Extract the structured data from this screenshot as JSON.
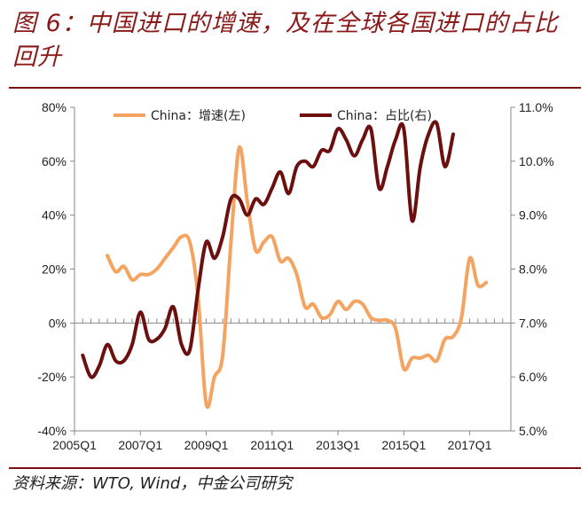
{
  "title": "图 6：中国进口的增速，及在全球各国进口的占比回升",
  "source": "资料来源：WTO, Wind，中金公司研究",
  "chart_data": {
    "type": "line",
    "x_ticks": [
      "2005Q1",
      "2007Q1",
      "2009Q1",
      "2011Q1",
      "2013Q1",
      "2015Q1",
      "2017Q1"
    ],
    "y_left": {
      "ticks": [
        "-40%",
        "-20%",
        "0%",
        "20%",
        "40%",
        "60%",
        "80%"
      ],
      "range": [
        -40,
        80
      ]
    },
    "y_right": {
      "ticks": [
        "5.0%",
        "6.0%",
        "7.0%",
        "8.0%",
        "9.0%",
        "10.0%",
        "11.0%"
      ],
      "range": [
        5.0,
        11.0
      ]
    },
    "grid": false,
    "legend_position": "top",
    "series": [
      {
        "name": "China：增速(左)",
        "axis": "left",
        "color": "#f4a460",
        "points": [
          [
            "2006Q1",
            25
          ],
          [
            "2006Q2",
            19
          ],
          [
            "2006Q3",
            21
          ],
          [
            "2006Q4",
            16
          ],
          [
            "2007Q1",
            18
          ],
          [
            "2007Q2",
            18
          ],
          [
            "2007Q3",
            20
          ],
          [
            "2007Q4",
            24
          ],
          [
            "2008Q1",
            28
          ],
          [
            "2008Q2",
            32
          ],
          [
            "2008Q3",
            30
          ],
          [
            "2008Q4",
            10
          ],
          [
            "2009Q1",
            -30
          ],
          [
            "2009Q2",
            -20
          ],
          [
            "2009Q3",
            -12
          ],
          [
            "2009Q4",
            30
          ],
          [
            "2010Q1",
            65
          ],
          [
            "2010Q2",
            45
          ],
          [
            "2010Q3",
            27
          ],
          [
            "2010Q4",
            30
          ],
          [
            "2011Q1",
            32
          ],
          [
            "2011Q2",
            23
          ],
          [
            "2011Q3",
            24
          ],
          [
            "2011Q4",
            18
          ],
          [
            "2012Q1",
            6
          ],
          [
            "2012Q2",
            7
          ],
          [
            "2012Q3",
            2
          ],
          [
            "2012Q4",
            3
          ],
          [
            "2013Q1",
            8
          ],
          [
            "2013Q2",
            5
          ],
          [
            "2013Q3",
            8
          ],
          [
            "2013Q4",
            7
          ],
          [
            "2014Q1",
            2
          ],
          [
            "2014Q2",
            1
          ],
          [
            "2014Q3",
            1
          ],
          [
            "2014Q4",
            -2
          ],
          [
            "2015Q1",
            -17
          ],
          [
            "2015Q2",
            -13
          ],
          [
            "2015Q3",
            -13
          ],
          [
            "2015Q4",
            -12
          ],
          [
            "2016Q1",
            -14
          ],
          [
            "2016Q2",
            -6
          ],
          [
            "2016Q3",
            -5
          ],
          [
            "2016Q4",
            2
          ],
          [
            "2017Q1",
            24
          ],
          [
            "2017Q2",
            14
          ],
          [
            "2017Q3",
            15
          ]
        ]
      },
      {
        "name": "China：占比(右)",
        "axis": "right",
        "color": "#6b0f0f",
        "points": [
          [
            "2005Q2",
            6.4
          ],
          [
            "2005Q3",
            6.0
          ],
          [
            "2005Q4",
            6.2
          ],
          [
            "2006Q1",
            6.6
          ],
          [
            "2006Q2",
            6.3
          ],
          [
            "2006Q3",
            6.3
          ],
          [
            "2006Q4",
            6.6
          ],
          [
            "2007Q1",
            7.2
          ],
          [
            "2007Q2",
            6.7
          ],
          [
            "2007Q3",
            6.7
          ],
          [
            "2007Q4",
            6.9
          ],
          [
            "2008Q1",
            7.3
          ],
          [
            "2008Q2",
            6.6
          ],
          [
            "2008Q3",
            6.5
          ],
          [
            "2008Q4",
            7.6
          ],
          [
            "2009Q1",
            8.5
          ],
          [
            "2009Q2",
            8.2
          ],
          [
            "2009Q3",
            8.6
          ],
          [
            "2009Q4",
            9.3
          ],
          [
            "2010Q1",
            9.3
          ],
          [
            "2010Q2",
            9.0
          ],
          [
            "2010Q3",
            9.3
          ],
          [
            "2010Q4",
            9.2
          ],
          [
            "2011Q1",
            9.5
          ],
          [
            "2011Q2",
            9.8
          ],
          [
            "2011Q3",
            9.4
          ],
          [
            "2011Q4",
            9.9
          ],
          [
            "2012Q1",
            10.0
          ],
          [
            "2012Q2",
            9.9
          ],
          [
            "2012Q3",
            10.2
          ],
          [
            "2012Q4",
            10.2
          ],
          [
            "2013Q1",
            10.6
          ],
          [
            "2013Q2",
            10.4
          ],
          [
            "2013Q3",
            10.1
          ],
          [
            "2013Q4",
            10.4
          ],
          [
            "2014Q1",
            10.6
          ],
          [
            "2014Q2",
            9.5
          ],
          [
            "2014Q3",
            9.9
          ],
          [
            "2014Q4",
            10.4
          ],
          [
            "2015Q1",
            10.6
          ],
          [
            "2015Q2",
            8.9
          ],
          [
            "2015Q3",
            9.9
          ],
          [
            "2015Q4",
            10.5
          ],
          [
            "2016Q1",
            10.7
          ],
          [
            "2016Q2",
            9.9
          ],
          [
            "2016Q3",
            10.5
          ]
        ]
      }
    ]
  }
}
